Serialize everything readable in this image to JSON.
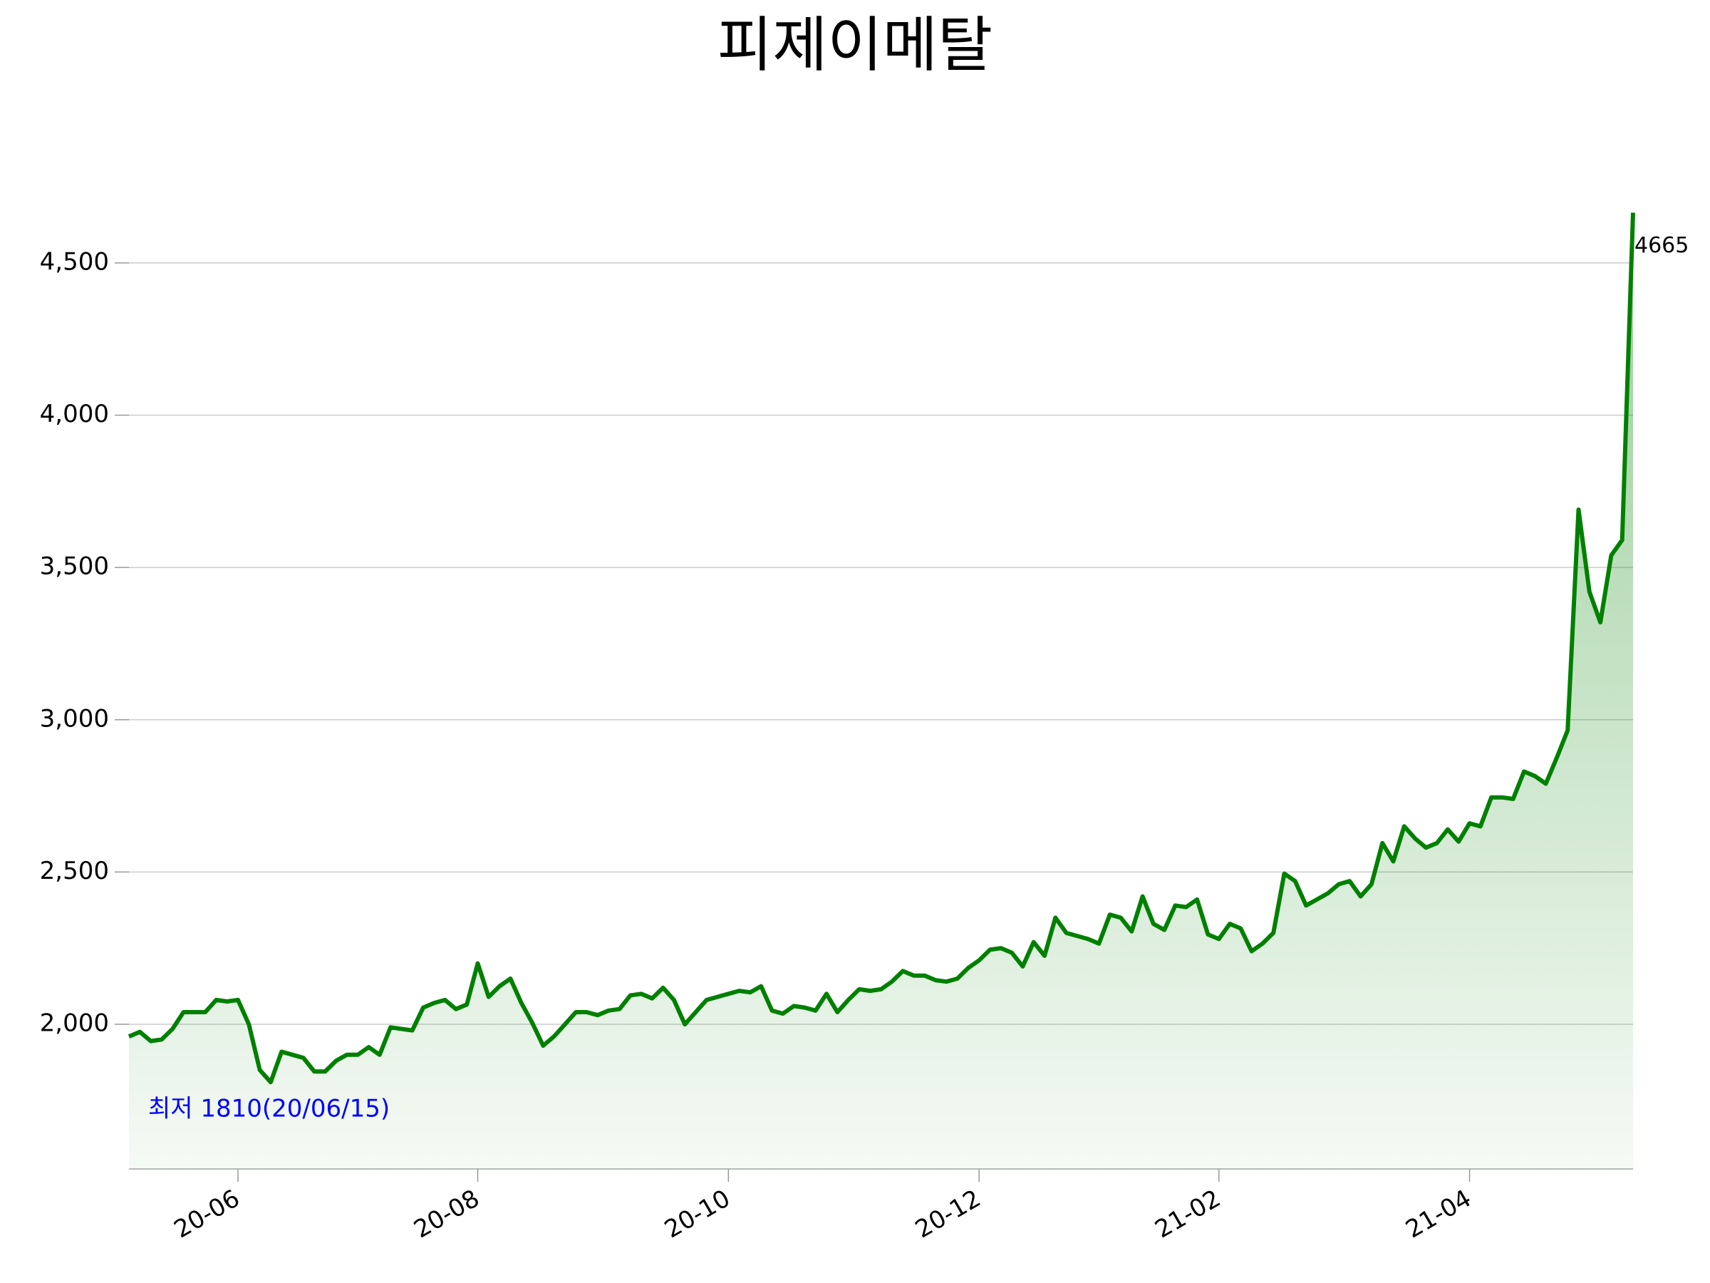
{
  "chart_data": {
    "type": "line",
    "title": "피제이메탈",
    "values": [
      1960,
      1975,
      1945,
      1950,
      1985,
      2040,
      2040,
      2040,
      2080,
      2075,
      2080,
      2000,
      1850,
      1810,
      1910,
      1900,
      1890,
      1845,
      1845,
      1880,
      1900,
      1900,
      1925,
      1900,
      1990,
      1985,
      1980,
      2055,
      2070,
      2080,
      2050,
      2065,
      2200,
      2090,
      2125,
      2150,
      2070,
      2005,
      1930,
      1960,
      2000,
      2040,
      2040,
      2030,
      2045,
      2050,
      2095,
      2100,
      2085,
      2120,
      2080,
      2000,
      2040,
      2080,
      2090,
      2100,
      2110,
      2105,
      2125,
      2045,
      2035,
      2060,
      2055,
      2045,
      2100,
      2040,
      2080,
      2115,
      2110,
      2115,
      2140,
      2175,
      2160,
      2160,
      2145,
      2140,
      2150,
      2185,
      2210,
      2245,
      2250,
      2235,
      2190,
      2270,
      2225,
      2350,
      2300,
      2290,
      2280,
      2265,
      2360,
      2350,
      2305,
      2420,
      2330,
      2310,
      2390,
      2385,
      2410,
      2295,
      2280,
      2330,
      2315,
      2240,
      2265,
      2300,
      2495,
      2470,
      2390,
      2410,
      2430,
      2460,
      2470,
      2420,
      2460,
      2595,
      2535,
      2650,
      2610,
      2580,
      2595,
      2640,
      2600,
      2660,
      2650,
      2745,
      2745,
      2740,
      2830,
      2815,
      2790,
      2875,
      2965,
      3690,
      3420,
      3320,
      3540,
      3590,
      4665
    ],
    "color": "#008000",
    "xlim": [
      0,
      138
    ],
    "xticks": [
      {
        "value": 10,
        "label": "20-06"
      },
      {
        "value": 32,
        "label": "20-08"
      },
      {
        "value": 55,
        "label": "20-10"
      },
      {
        "value": 78,
        "label": "20-12"
      },
      {
        "value": 100,
        "label": "21-02"
      },
      {
        "value": 123,
        "label": "21-04"
      }
    ],
    "ylim": [
      1525,
      4680
    ],
    "yticks": [
      {
        "value": 2000,
        "label": "2,000"
      },
      {
        "value": 2500,
        "label": "2,500"
      },
      {
        "value": 3000,
        "label": "3,000"
      },
      {
        "value": 3500,
        "label": "3,500"
      },
      {
        "value": 4000,
        "label": "4,000"
      },
      {
        "value": 4500,
        "label": "4,500"
      }
    ],
    "grid": true,
    "annotation": "최저 1810(20/06/15)",
    "annotation_color": "#0000ff"
  }
}
